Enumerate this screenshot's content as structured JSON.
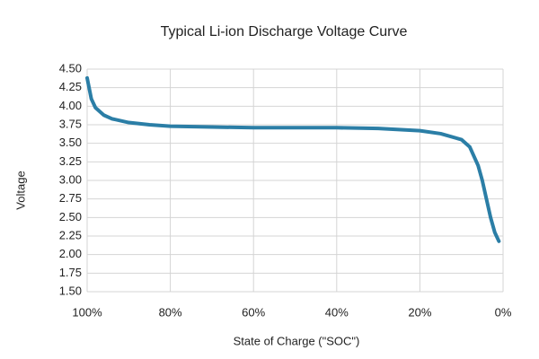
{
  "chart_data": {
    "type": "line",
    "title": "Typical Li-ion Discharge Voltage Curve",
    "x_label": "State of Charge (\"SOC\")",
    "y_label": "Voltage",
    "x": [
      100,
      99,
      98,
      96,
      94,
      90,
      85,
      80,
      70,
      60,
      50,
      40,
      30,
      20,
      15,
      10,
      8,
      6,
      5,
      4,
      3,
      2,
      1
    ],
    "values": [
      4.38,
      4.1,
      3.98,
      3.88,
      3.83,
      3.78,
      3.75,
      3.73,
      3.72,
      3.71,
      3.71,
      3.71,
      3.7,
      3.67,
      3.63,
      3.55,
      3.45,
      3.2,
      3.0,
      2.75,
      2.5,
      2.3,
      2.18
    ],
    "color": "#2b7ea6",
    "xlim": [
      100,
      0
    ],
    "xticks": [
      {
        "value": 100,
        "label": "100%"
      },
      {
        "value": 80,
        "label": "80%"
      },
      {
        "value": 60,
        "label": "60%"
      },
      {
        "value": 40,
        "label": "40%"
      },
      {
        "value": 20,
        "label": "20%"
      },
      {
        "value": 0,
        "label": "0%"
      }
    ],
    "ylim": [
      1.5,
      4.5
    ],
    "yticks": [
      {
        "value": 1.5,
        "label": "1.50"
      },
      1.75,
      {
        "value": 2,
        "label": "2.00"
      },
      2.25,
      {
        "value": 2.5,
        "label": "2.50"
      },
      2.75,
      {
        "value": 3,
        "label": "3.00"
      },
      3.25,
      {
        "value": 3.5,
        "label": "3.50"
      },
      3.75,
      {
        "value": 4,
        "label": "4.00"
      },
      4.25,
      {
        "value": 4.5,
        "label": "4.50"
      }
    ],
    "grid": true
  }
}
